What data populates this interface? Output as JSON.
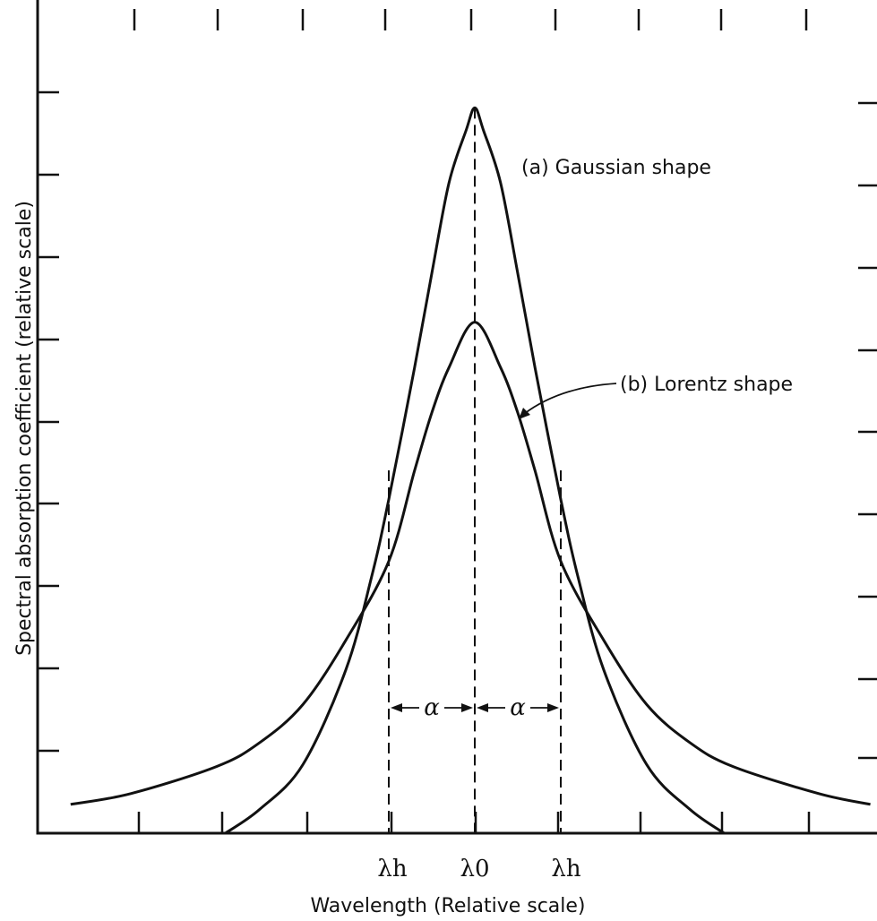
{
  "chart_data": {
    "type": "line",
    "title": "",
    "xlabel": "Wavelength (Relative scale)",
    "ylabel": "Spectral absorption coefficient (relative scale)",
    "xlim": [
      -5,
      4.6
    ],
    "ylim": [
      0,
      9.3
    ],
    "grid": false,
    "legend": "annotations",
    "x_tick_labels": [
      {
        "x": -1,
        "label": "λh"
      },
      {
        "x": 0,
        "label": "λ0"
      },
      {
        "x": 1,
        "label": "λh"
      }
    ],
    "series": [
      {
        "name": "(a) Gaussian shape",
        "x": [
          -2.9,
          -2.5,
          -2.0,
          -1.5,
          -1.2,
          -1.0,
          -0.7,
          -0.5,
          -0.3,
          -0.1,
          0,
          0.1,
          0.3,
          0.5,
          0.7,
          1.0,
          1.2,
          1.5,
          2.0,
          2.5,
          2.9
        ],
        "values": [
          0.0,
          0.29,
          0.83,
          1.98,
          3.11,
          4.05,
          5.65,
          6.79,
          7.89,
          8.53,
          8.8,
          8.53,
          7.89,
          6.79,
          5.65,
          4.05,
          3.11,
          1.98,
          0.83,
          0.29,
          0.0
        ]
      },
      {
        "name": "(b) Lorentz shape",
        "x": [
          -4.7,
          -4.0,
          -3.0,
          -2.5,
          -2.0,
          -1.5,
          -1.0,
          -0.7,
          -0.5,
          -0.3,
          0,
          0.3,
          0.5,
          0.7,
          1.0,
          1.5,
          2.0,
          2.5,
          3.0,
          4.0,
          4.6
        ],
        "values": [
          0.35,
          0.48,
          0.81,
          1.1,
          1.56,
          2.34,
          3.3,
          4.4,
          5.1,
          5.65,
          6.2,
          5.65,
          5.1,
          4.4,
          3.3,
          2.34,
          1.56,
          1.1,
          0.81,
          0.48,
          0.35
        ]
      }
    ],
    "annotations": [
      {
        "text": "α",
        "from": -1,
        "to": 0
      },
      {
        "text": "α",
        "from": 0,
        "to": 1
      }
    ]
  }
}
